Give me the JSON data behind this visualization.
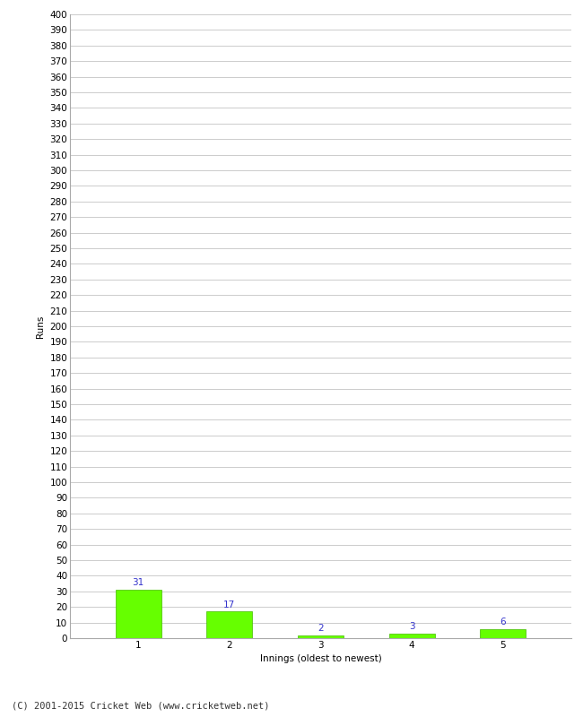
{
  "categories": [
    1,
    2,
    3,
    4,
    5
  ],
  "values": [
    31,
    17,
    2,
    3,
    6
  ],
  "bar_color": "#66ff00",
  "bar_edge_color": "#44bb00",
  "label_color": "#3333cc",
  "xlabel": "Innings (oldest to newest)",
  "ylabel": "Runs",
  "ylim": [
    0,
    400
  ],
  "footer": "(C) 2001-2015 Cricket Web (www.cricketweb.net)",
  "grid_color": "#cccccc",
  "background_color": "#ffffff",
  "label_fontsize": 7.5,
  "axis_fontsize": 7.5,
  "ylabel_fontsize": 7.5,
  "xlabel_fontsize": 7.5,
  "footer_fontsize": 7.5
}
